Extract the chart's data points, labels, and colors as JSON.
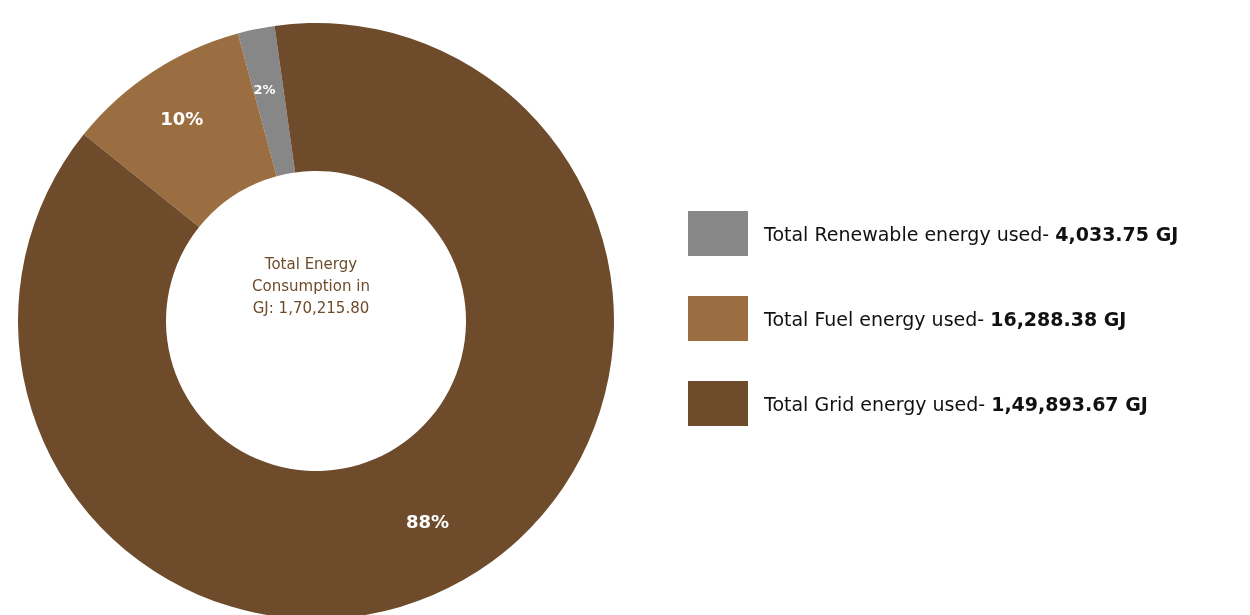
{
  "chart_data": {
    "type": "donut",
    "categories": [
      "Total Renewable energy used- 4,033.75 GJ",
      "Total Fuel energy used- 16,288.38 GJ",
      "Total Grid energy used- 1,49,893.67 GJ"
    ],
    "values": [
      2,
      10,
      88
    ],
    "colors": [
      "#878787",
      "#9a6e40",
      "#6e4b2b"
    ],
    "value_labels": [
      "2%",
      "10%",
      "88%"
    ],
    "annotations": [
      "Total Energy Consumption in GJ: 1,70,215.80"
    ],
    "legend": "right"
  }
}
